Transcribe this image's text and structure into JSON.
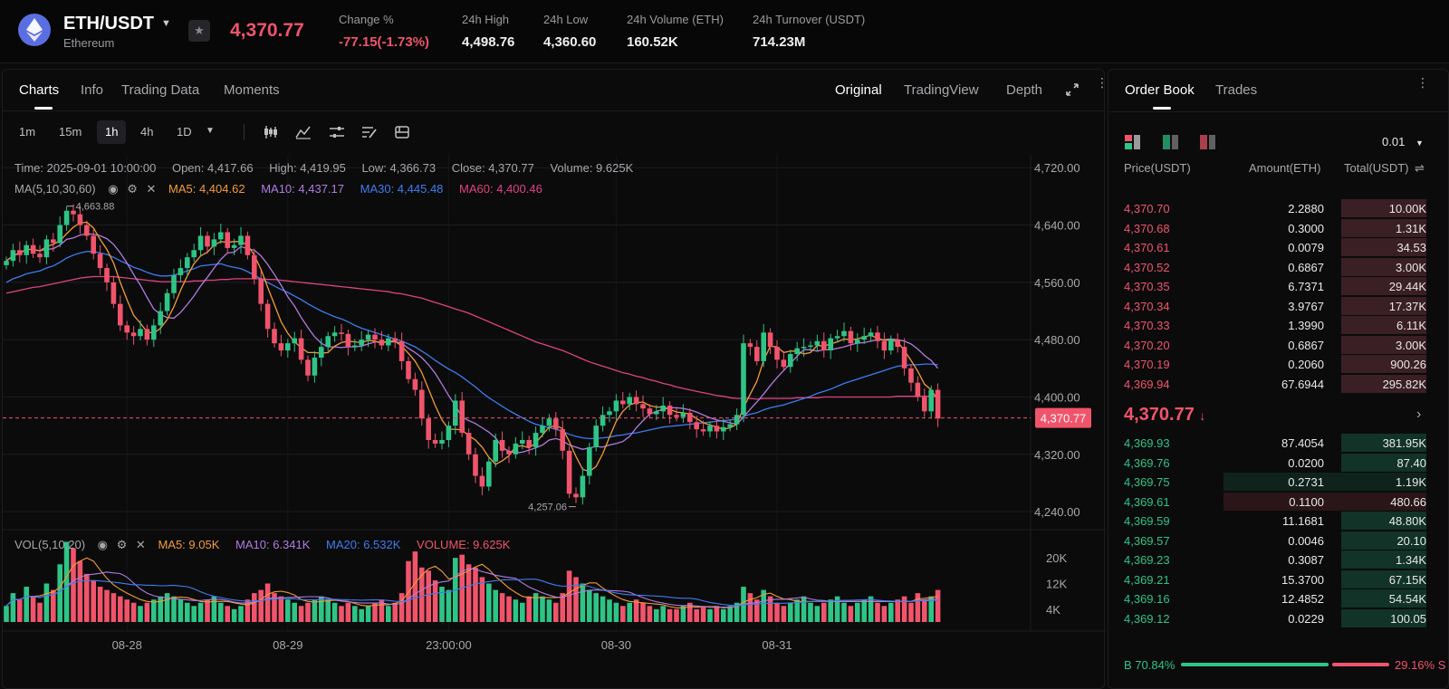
{
  "header": {
    "pair": "ETH/USDT",
    "subtitle": "Ethereum",
    "price": "4,370.77",
    "stats": [
      {
        "label": "Change %",
        "value": "-77.15(-1.73%)",
        "negative": true
      },
      {
        "label": "24h High",
        "value": "4,498.76"
      },
      {
        "label": "24h Low",
        "value": "4,360.60"
      },
      {
        "label": "24h Volume (ETH)",
        "value": "160.52K"
      },
      {
        "label": "24h Turnover (USDT)",
        "value": "714.23M"
      }
    ]
  },
  "chart_tabs": [
    "Charts",
    "Info",
    "Trading Data",
    "Moments"
  ],
  "view_tabs": [
    "Original",
    "TradingView",
    "Depth"
  ],
  "intervals": [
    "1m",
    "15m",
    "1h",
    "4h",
    "1D"
  ],
  "active_interval": "1h",
  "ohlc_legend": {
    "time": "Time: 2025-09-01 10:00:00",
    "open": "Open: 4,417.66",
    "high": "High: 4,419.95",
    "low": "Low: 4,366.73",
    "close": "Close: 4,370.77",
    "volume": "Volume: 9.625K"
  },
  "ma_legend": {
    "label": "MA(5,10,30,60)",
    "ma5": "MA5: 4,404.62",
    "ma10": "MA10: 4,437.17",
    "ma30": "MA30: 4,445.48",
    "ma60": "MA60: 4,400.46"
  },
  "vol_legend": {
    "label": "VOL(5,10,20)",
    "ma5": "MA5: 9.05K",
    "ma10": "MA10: 6.341K",
    "ma20": "MA20: 6.532K",
    "volume": "VOLUME: 9.625K"
  },
  "colors": {
    "up": "#2ec486",
    "down": "#f0546b",
    "ma5": "#f39c34",
    "ma10": "#b07ce0",
    "ma30": "#3d7df0",
    "ma60": "#e0437e"
  },
  "chart_data": {
    "type": "candlestick",
    "x_ticks": [
      "08-28",
      "08-29",
      "23:00:00",
      "08-30",
      "08-31"
    ],
    "y_ticks": [
      "4,720.00",
      "4,640.00",
      "4,560.00",
      "4,480.00",
      "4,400.00",
      "4,320.00",
      "4,240.00"
    ],
    "ylim": [
      4225,
      4738
    ],
    "current_price_label": "4,370.77",
    "high_annotation": "4,663.88",
    "low_annotation": "4,257.06",
    "candle_closes": [
      4590,
      4605,
      4598,
      4612,
      4600,
      4595,
      4620,
      4615,
      4640,
      4660,
      4655,
      4640,
      4625,
      4600,
      4580,
      4560,
      4530,
      4500,
      4490,
      4485,
      4495,
      4480,
      4500,
      4520,
      4545,
      4570,
      4580,
      4595,
      4605,
      4625,
      4610,
      4620,
      4630,
      4608,
      4612,
      4625,
      4598,
      4565,
      4530,
      4495,
      4475,
      4465,
      4475,
      4482,
      4452,
      4430,
      4455,
      4470,
      4485,
      4490,
      4488,
      4470,
      4472,
      4480,
      4487,
      4480,
      4472,
      4482,
      4478,
      4450,
      4425,
      4410,
      4370,
      4340,
      4335,
      4340,
      4360,
      4395,
      4350,
      4320,
      4290,
      4275,
      4310,
      4340,
      4325,
      4320,
      4335,
      4340,
      4330,
      4350,
      4360,
      4370,
      4355,
      4325,
      4265,
      4260,
      4290,
      4330,
      4360,
      4375,
      4380,
      4395,
      4390,
      4400,
      4390,
      4384,
      4376,
      4380,
      4388,
      4375,
      4372,
      4378,
      4365,
      4355,
      4352,
      4360,
      4352,
      4358,
      4362,
      4375,
      4475,
      4470,
      4450,
      4490,
      4470,
      4452,
      4442,
      4460,
      4468,
      4470,
      4472,
      4478,
      4465,
      4482,
      4485,
      4492,
      4475,
      4480,
      4485,
      4490,
      4478,
      4465,
      4480,
      4470,
      4440,
      4420,
      4400,
      4380,
      4410,
      4370
    ],
    "ma5": [
      4590,
      4597,
      4601,
      4606,
      4606,
      4604,
      4610,
      4613,
      4618,
      4628,
      4637,
      4643,
      4644,
      4636,
      4620,
      4606,
      4587,
      4560,
      4536,
      4514,
      4503,
      4491,
      4489,
      4496,
      4508,
      4526,
      4549,
      4569,
      4586,
      4597,
      4602,
      4612,
      4617,
      4616,
      4617,
      4617,
      4612,
      4598,
      4578,
      4553,
      4529,
      4505,
      4489,
      4477,
      4469,
      4462,
      4462,
      4461,
      4462,
      4471,
      4476,
      4478,
      4477,
      4476,
      4479,
      4478,
      4475,
      4478,
      4478,
      4471,
      4461,
      4450,
      4434,
      4411,
      4388,
      4368,
      4355,
      4355,
      4354,
      4346,
      4340,
      4330,
      4316,
      4306,
      4311,
      4318,
      4331,
      4332,
      4329,
      4336,
      4347,
      4358,
      4360,
      4356,
      4338,
      4317,
      4299,
      4296,
      4303,
      4321,
      4344,
      4366,
      4380,
      4389,
      4392,
      4393,
      4388,
      4386,
      4386,
      4383,
      4379,
      4378,
      4376,
      4370,
      4364,
      4361,
      4358,
      4355,
      4357,
      4362,
      4385,
      4404,
      4422,
      4451,
      4471,
      4470,
      4462,
      4464,
      4464,
      4460,
      4462,
      4472,
      4471,
      4474,
      4477,
      4481,
      4480,
      4481,
      4484,
      4486,
      4482,
      4479,
      4480,
      4477,
      4465,
      4451,
      4436,
      4418,
      4410,
      4396
    ],
    "ma10": [
      4590,
      4597,
      4601,
      4606,
      4606,
      4604,
      4606,
      4607,
      4612,
      4620,
      4622,
      4626,
      4628,
      4627,
      4625,
      4621,
      4613,
      4601,
      4587,
      4571,
      4556,
      4539,
      4523,
      4515,
      4511,
      4510,
      4518,
      4529,
      4541,
      4555,
      4567,
      4580,
      4592,
      4601,
      4602,
      4610,
      4607,
      4605,
      4597,
      4585,
      4571,
      4556,
      4540,
      4527,
      4511,
      4497,
      4484,
      4475,
      4470,
      4470,
      4469,
      4470,
      4470,
      4471,
      4474,
      4477,
      4477,
      4477,
      4477,
      4475,
      4468,
      4462,
      4455,
      4445,
      4433,
      4418,
      4402,
      4388,
      4372,
      4367,
      4363,
      4357,
      4351,
      4343,
      4330,
      4324,
      4322,
      4323,
      4326,
      4329,
      4333,
      4340,
      4342,
      4339,
      4333,
      4330,
      4327,
      4329,
      4331,
      4330,
      4333,
      4335,
      4338,
      4345,
      4357,
      4367,
      4376,
      4380,
      4383,
      4385,
      4385,
      4384,
      4382,
      4379,
      4375,
      4371,
      4368,
      4366,
      4364,
      4362,
      4372,
      4383,
      4393,
      4404,
      4416,
      4427,
      4437,
      4447,
      4457,
      4466,
      4466,
      4464,
      4466,
      4466,
      4468,
      4470,
      4473,
      4475,
      4476,
      4478,
      4480,
      4480,
      4481,
      4480,
      4478,
      4474,
      4467,
      4458,
      4451,
      4440
    ],
    "ma30": [
      4560,
      4565,
      4568,
      4572,
      4574,
      4576,
      4580,
      4583,
      4588,
      4594,
      4598,
      4601,
      4603,
      4603,
      4601,
      4599,
      4595,
      4590,
      4586,
      4581,
      4578,
      4574,
      4571,
      4569,
      4569,
      4570,
      4573,
      4576,
      4579,
      4583,
      4584,
      4585,
      4586,
      4583,
      4581,
      4579,
      4575,
      4570,
      4565,
      4560,
      4555,
      4550,
      4546,
      4541,
      4536,
      4530,
      4525,
      4520,
      4516,
      4512,
      4509,
      4505,
      4500,
      4496,
      4493,
      4490,
      4487,
      4484,
      4481,
      4478,
      4474,
      4470,
      4464,
      4458,
      4451,
      4445,
      4439,
      4434,
      4428,
      4421,
      4414,
      4406,
      4399,
      4393,
      4387,
      4381,
      4376,
      4371,
      4366,
      4362,
      4360,
      4357,
      4355,
      4352,
      4348,
      4345,
      4343,
      4342,
      4342,
      4343,
      4344,
      4346,
      4347,
      4349,
      4350,
      4352,
      4354,
      4356,
      4358,
      4359,
      4360,
      4361,
      4362,
      4363,
      4364,
      4365,
      4366,
      4367,
      4368,
      4369,
      4373,
      4376,
      4378,
      4382,
      4385,
      4387,
      4389,
      4392,
      4395,
      4398,
      4401,
      4405,
      4408,
      4411,
      4415,
      4419,
      4422,
      4425,
      4428,
      4431,
      4434,
      4437,
      4440,
      4443,
      4444,
      4445,
      4445,
      4446,
      4446,
      4445
    ],
    "ma60": [
      4545,
      4547,
      4549,
      4551,
      4553,
      4554,
      4556,
      4558,
      4560,
      4562,
      4564,
      4566,
      4567,
      4568,
      4568,
      4568,
      4568,
      4567,
      4566,
      4565,
      4564,
      4563,
      4562,
      4561,
      4561,
      4561,
      4561,
      4561,
      4562,
      4562,
      4563,
      4563,
      4564,
      4564,
      4565,
      4565,
      4565,
      4565,
      4565,
      4564,
      4564,
      4563,
      4562,
      4561,
      4560,
      4559,
      4558,
      4557,
      4556,
      4555,
      4554,
      4553,
      4552,
      4551,
      4550,
      4549,
      4548,
      4547,
      4545,
      4544,
      4542,
      4540,
      4538,
      4535,
      4532,
      4529,
      4526,
      4523,
      4520,
      4517,
      4513,
      4509,
      4505,
      4501,
      4497,
      4493,
      4489,
      4485,
      4481,
      4477,
      4474,
      4471,
      4468,
      4465,
      4461,
      4457,
      4453,
      4449,
      4446,
      4443,
      4440,
      4437,
      4434,
      4432,
      4429,
      4427,
      4424,
      4422,
      4419,
      4417,
      4414,
      4412,
      4410,
      4408,
      4406,
      4404,
      4402,
      4401,
      4399,
      4398,
      4398,
      4398,
      4397,
      4398,
      4398,
      4398,
      4398,
      4398,
      4399,
      4399,
      4399,
      4399,
      4400,
      4400,
      4400,
      4400,
      4400,
      4400,
      4400,
      4400,
      4400,
      4400,
      4400,
      4401,
      4401,
      4401,
      4401,
      4401,
      4401,
      4400
    ],
    "volumes": [
      5,
      9,
      7,
      11,
      8,
      6,
      12,
      10,
      18,
      25,
      23,
      19,
      15,
      13,
      11,
      10,
      9,
      8,
      7,
      6,
      5,
      6,
      7,
      8,
      9,
      8,
      7,
      6,
      5,
      6,
      7,
      8,
      6,
      5,
      4,
      5,
      7,
      9,
      10,
      12,
      9,
      8,
      7,
      6,
      5,
      6,
      7,
      8,
      7,
      6,
      5,
      6,
      5,
      4,
      5,
      6,
      7,
      5,
      6,
      9,
      19,
      22,
      17,
      16,
      13,
      11,
      10,
      20,
      21,
      18,
      17,
      14,
      12,
      10,
      9,
      8,
      7,
      6,
      8,
      9,
      8,
      7,
      6,
      9,
      16,
      14,
      12,
      10,
      9,
      8,
      7,
      6,
      5,
      6,
      7,
      6,
      5,
      4,
      5,
      4,
      4,
      5,
      6,
      4,
      5,
      4,
      5,
      4,
      5,
      6,
      11,
      9,
      7,
      10,
      8,
      6,
      5,
      6,
      7,
      8,
      6,
      5,
      6,
      7,
      8,
      6,
      5,
      6,
      7,
      8,
      6,
      5,
      6,
      7,
      8,
      6,
      9,
      7,
      8,
      10
    ],
    "vol_y_ticks": [
      "20K",
      "12K",
      "4K"
    ]
  },
  "book_tabs": [
    "Order Book",
    "Trades"
  ],
  "book_headers": {
    "price": "Price(USDT)",
    "amount": "Amount(ETH)",
    "total": "Total(USDT)"
  },
  "precision": "0.01",
  "asks": [
    {
      "price": "4,370.70",
      "amount": "2.2880",
      "total": "10.00K",
      "depth": 0.28
    },
    {
      "price": "4,370.68",
      "amount": "0.3000",
      "total": "1.31K",
      "depth": 0.28
    },
    {
      "price": "4,370.61",
      "amount": "0.0079",
      "total": "34.53",
      "depth": 0.28
    },
    {
      "price": "4,370.52",
      "amount": "0.6867",
      "total": "3.00K",
      "depth": 0.28
    },
    {
      "price": "4,370.35",
      "amount": "6.7371",
      "total": "29.44K",
      "depth": 0.28
    },
    {
      "price": "4,370.34",
      "amount": "3.9767",
      "total": "17.37K",
      "depth": 0.28
    },
    {
      "price": "4,370.33",
      "amount": "1.3990",
      "total": "6.11K",
      "depth": 0.28
    },
    {
      "price": "4,370.20",
      "amount": "0.6867",
      "total": "3.00K",
      "depth": 0.28
    },
    {
      "price": "4,370.19",
      "amount": "0.2060",
      "total": "900.26",
      "depth": 0.28
    },
    {
      "price": "4,369.94",
      "amount": "67.6944",
      "total": "295.82K",
      "depth": 0.28
    }
  ],
  "mid_price": "4,370.77",
  "bids": [
    {
      "price": "4,369.93",
      "amount": "87.4054",
      "total": "381.95K",
      "depth": 0.28
    },
    {
      "price": "4,369.76",
      "amount": "0.0200",
      "total": "87.40",
      "depth": 0.28
    },
    {
      "price": "4,369.75",
      "amount": "0.2731",
      "total": "1.19K",
      "depth": 0.67
    },
    {
      "price": "4,369.61",
      "amount": "0.1100",
      "total": "480.66",
      "depth": 0.67
    },
    {
      "price": "4,369.59",
      "amount": "11.1681",
      "total": "48.80K",
      "depth": 0.28
    },
    {
      "price": "4,369.57",
      "amount": "0.0046",
      "total": "20.10",
      "depth": 0.28
    },
    {
      "price": "4,369.23",
      "amount": "0.3087",
      "total": "1.34K",
      "depth": 0.28
    },
    {
      "price": "4,369.21",
      "amount": "15.3700",
      "total": "67.15K",
      "depth": 0.28
    },
    {
      "price": "4,369.16",
      "amount": "12.4852",
      "total": "54.54K",
      "depth": 0.28
    },
    {
      "price": "4,369.12",
      "amount": "0.0229",
      "total": "100.05",
      "depth": 0.28
    }
  ],
  "ratio": {
    "buy_label": "B 70.84%",
    "sell_label": "29.16% S",
    "buy": 0.7084
  }
}
